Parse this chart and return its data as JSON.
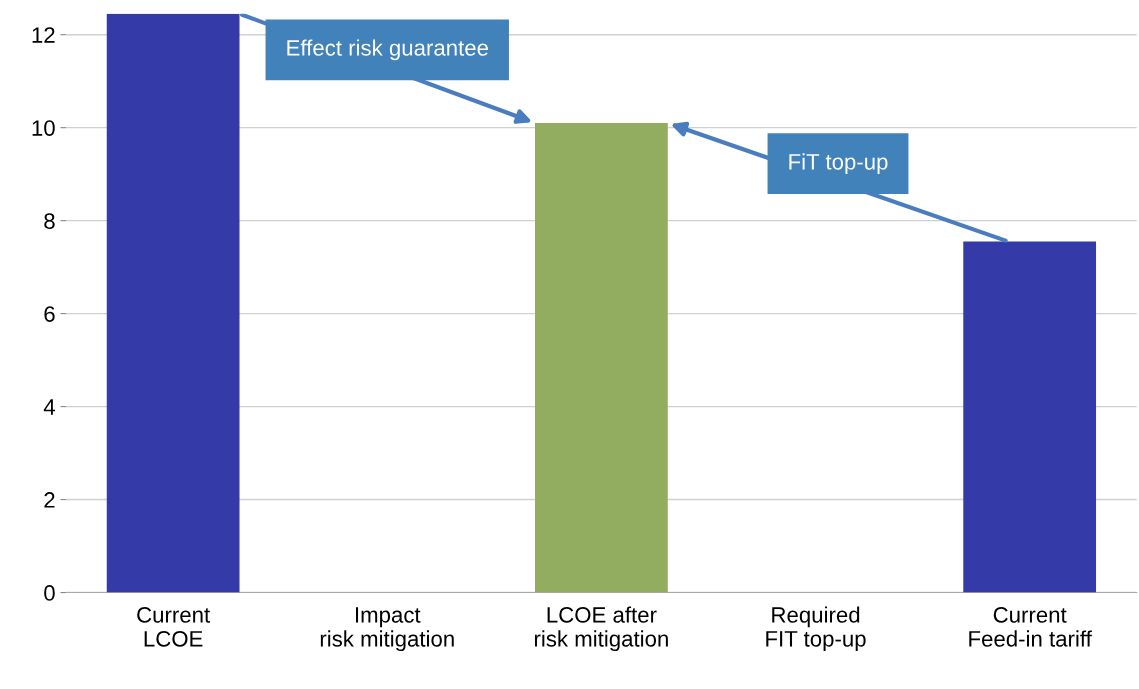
{
  "chart_data": {
    "type": "bar",
    "categories": [
      "Current LCOE",
      "Impact risk mitigation",
      "LCOE after risk mitigation",
      "Required FIT top-up",
      "Current Feed-in tariff"
    ],
    "values": [
      12.45,
      null,
      10.1,
      null,
      7.55
    ],
    "colors": [
      "#343ba8",
      "#343ba8",
      "#92ad60",
      "#343ba8",
      "#343ba8"
    ],
    "ylim": [
      0,
      12.45
    ],
    "yticks": [
      0,
      2,
      4,
      6,
      8,
      10,
      12
    ],
    "grid": "y",
    "annotations": [
      "Effect risk guarantee",
      "FiT top-up"
    ]
  }
}
